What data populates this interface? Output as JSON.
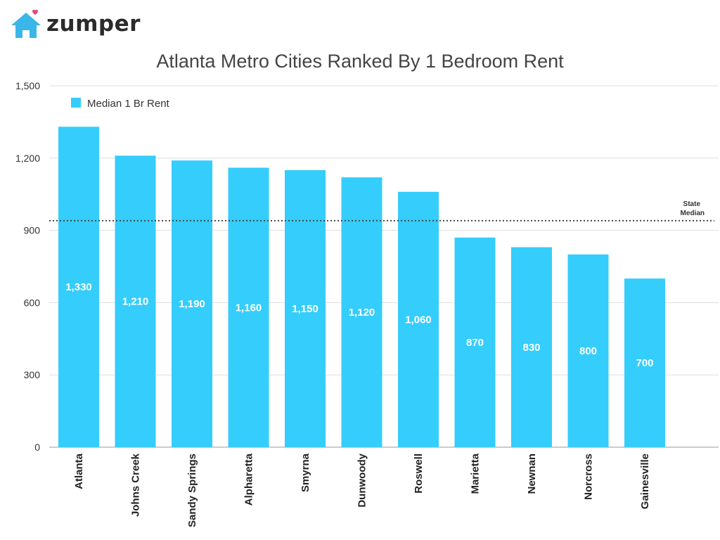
{
  "brand": {
    "name": "zumper",
    "house_color": "#3bb6e8",
    "heart_color": "#e8457a"
  },
  "chart_data": {
    "type": "bar",
    "title": "Atlanta Metro Cities Ranked By 1 Bedroom Rent",
    "categories": [
      "Atlanta",
      "Johns Creek",
      "Sandy Springs",
      "Alpharetta",
      "Smyrna",
      "Dunwoody",
      "Roswell",
      "Marietta",
      "Newnan",
      "Norcross",
      "Gainesville"
    ],
    "series": [
      {
        "name": "Median 1 Br Rent",
        "values": [
          1330,
          1210,
          1190,
          1160,
          1150,
          1120,
          1060,
          870,
          830,
          800,
          700
        ],
        "data_labels": [
          "1,330",
          "1,210",
          "1,190",
          "1,160",
          "1,150",
          "1,120",
          "1,060",
          "870",
          "830",
          "800",
          "700"
        ],
        "color": "#35cdfb"
      }
    ],
    "ylim": [
      0,
      1500
    ],
    "yticks": [
      0,
      300,
      600,
      900,
      1200,
      1500
    ],
    "ytick_labels": [
      "0",
      "300",
      "600",
      "900",
      "1,200",
      "1,500"
    ],
    "grid": true,
    "legend": {
      "placement": "top-left",
      "label": "Median 1 Br Rent"
    },
    "reference_line": {
      "label_line1": "State",
      "label_line2": "Median",
      "value": 940,
      "style": "dotted"
    }
  }
}
